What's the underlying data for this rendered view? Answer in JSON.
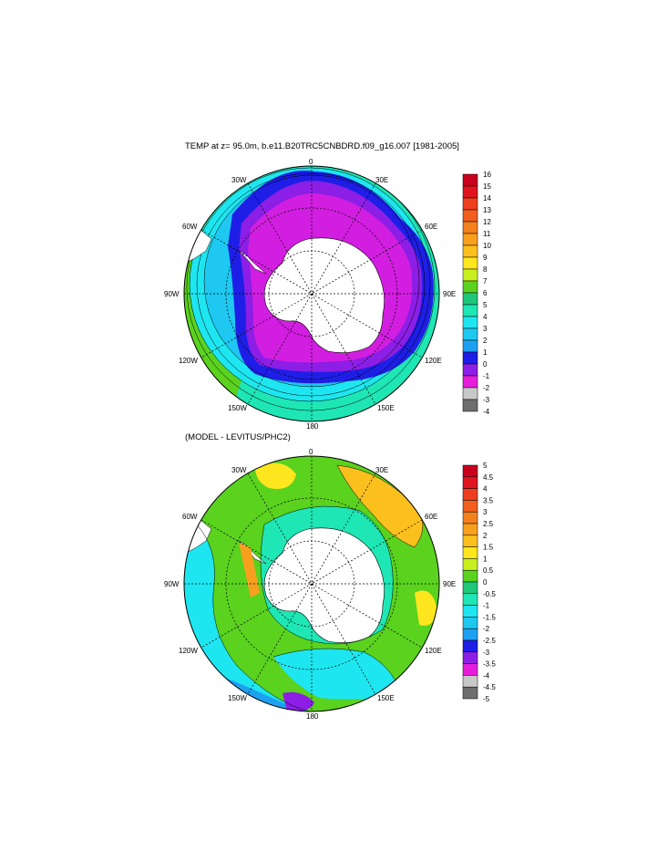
{
  "titles": {
    "top": "TEMP at z=  95.0m, b.e11.B20TRC5CNBDRD.f09_g16.007 [1981-2005]",
    "bottom": "(MODEL - LEVITUS/PHC2)"
  },
  "lon_labels": {
    "top": [
      "0",
      "30E",
      "60E",
      "90E",
      "120E",
      "150E",
      "180",
      "150W",
      "120W",
      "90W",
      "60W",
      "30W"
    ],
    "bottom": [
      "0",
      "30E",
      "60E",
      "90E",
      "120E",
      "150E",
      "180",
      "150W",
      "120W",
      "90W",
      "60W",
      "30W"
    ]
  },
  "colorbar_top": {
    "labels": [
      "16",
      "15",
      "14",
      "13",
      "12",
      "11",
      "10",
      "9",
      "8",
      "7",
      "6",
      "5",
      "4",
      "3",
      "2",
      "1",
      "0",
      "-1",
      "-2",
      "-3",
      "-4"
    ],
    "colors": [
      "#c8001e",
      "#e0141e",
      "#ee3e1e",
      "#f25e1e",
      "#f4801e",
      "#f8a01e",
      "#fcc01e",
      "#ffe61e",
      "#c8f01e",
      "#5ad21e",
      "#1ec878",
      "#1ee6b4",
      "#1ee6f0",
      "#1ec8f0",
      "#1ea0f0",
      "#1e1ee6",
      "#8c1ee6",
      "#e61edc",
      "#c8c8c8",
      "#6e6e6e"
    ]
  },
  "colorbar_bottom": {
    "labels": [
      "5",
      "4.5",
      "4",
      "3.5",
      "3",
      "2.5",
      "2",
      "1.5",
      "1",
      "0.5",
      "0",
      "-0.5",
      "-1",
      "-1.5",
      "-2",
      "-2.5",
      "-3",
      "-3.5",
      "-4",
      "-4.5",
      "-5"
    ],
    "colors": [
      "#c8001e",
      "#e0141e",
      "#ee3e1e",
      "#f25e1e",
      "#f4801e",
      "#f8a01e",
      "#fcc01e",
      "#ffe61e",
      "#c8f01e",
      "#5ad21e",
      "#1ec878",
      "#1ee6b4",
      "#1ee6f0",
      "#1ec8f0",
      "#1ea0f0",
      "#1e1ee6",
      "#8c1ee6",
      "#e61edc",
      "#c8c8c8",
      "#6e6e6e"
    ]
  },
  "colors": {
    "background": "#ffffff",
    "land": "#ffffff",
    "outline": "#000000",
    "top_ring_outer": "#1ee6b4",
    "top_ring_mid": "#1ee6f0",
    "top_ring_blue": "#1e1ee6",
    "top_ring_magenta": "#d21ee0",
    "bottom_field_main": "#5ad21e",
    "bottom_field_cyan": "#1ee6f0",
    "bottom_field_yellow": "#ffe61e",
    "bottom_field_blue": "#1ea0f0"
  }
}
